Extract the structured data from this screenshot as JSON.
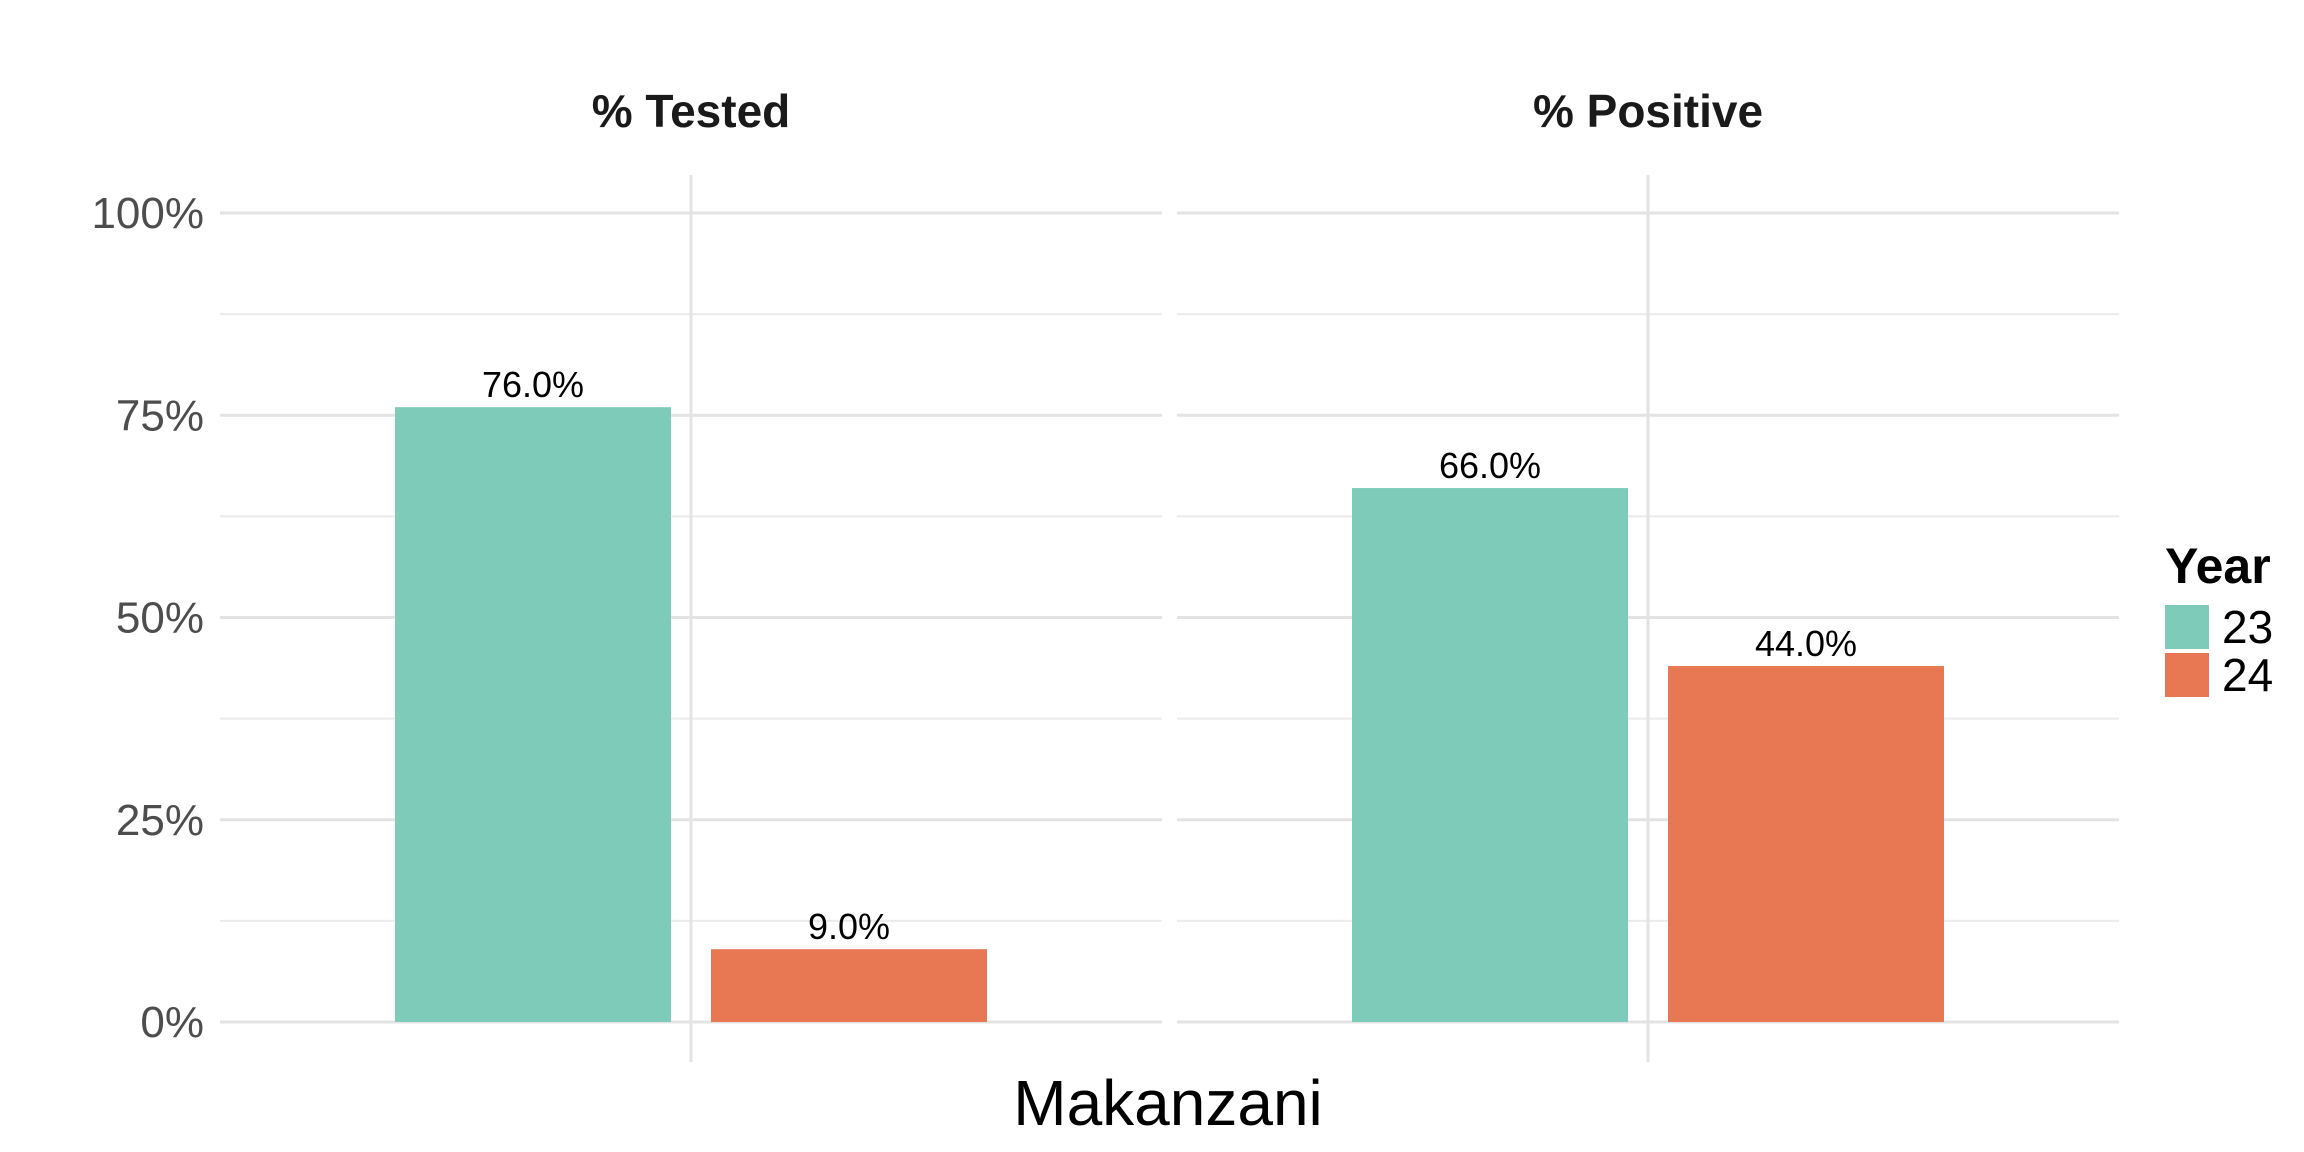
{
  "chart_data": {
    "type": "bar",
    "facets": [
      "% Tested",
      "% Positive"
    ],
    "x_category": "Makanzani",
    "xlabel": "Makanzani",
    "ylabel": "",
    "ylim": [
      0,
      100
    ],
    "y_ticks": [
      0,
      25,
      50,
      75,
      100
    ],
    "y_tick_labels": [
      "0%",
      "25%",
      "50%",
      "75%",
      "100%"
    ],
    "grid": true,
    "legend": {
      "title": "Year",
      "position": "right"
    },
    "series": [
      {
        "name": "23",
        "color": "#7fcbba",
        "values": [
          76.0,
          66.0
        ],
        "labels": [
          "76.0%",
          "66.0%"
        ]
      },
      {
        "name": "24",
        "color": "#e87753",
        "values": [
          9.0,
          44.0
        ],
        "labels": [
          "9.0%",
          "44.0%"
        ]
      }
    ]
  }
}
